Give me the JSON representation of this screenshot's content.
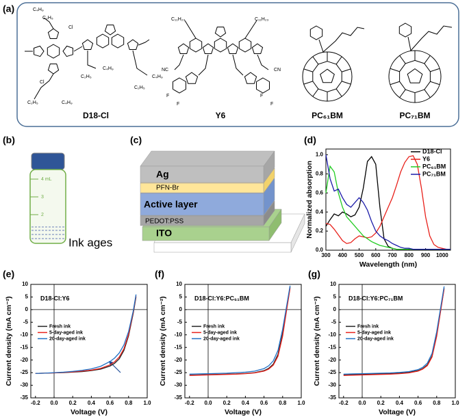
{
  "panel_labels": [
    "(a)",
    "(b)",
    "(c)",
    "(d)",
    "(e)",
    "(f)",
    "(g)"
  ],
  "molecules": {
    "names": [
      "D18-Cl",
      "Y6",
      "PC₆₁BM",
      "PC₇₁BM"
    ],
    "d18_atoms": [
      "C₄H₉",
      "C₂H₅",
      "Cl",
      "Cl",
      "C₂H₅",
      "C₄H₉",
      "C₄H₉",
      "C₂H₅",
      "C₄H₉",
      "C₂H₅"
    ],
    "y6_atoms": [
      "C₁₁H₂₃",
      "C₁₁H₂₃",
      "NC",
      "CN",
      "F",
      "F",
      "F",
      "F"
    ]
  },
  "vial": {
    "marks": [
      "4 mL",
      "3",
      "2"
    ],
    "caption": "Ink ages"
  },
  "device": {
    "layers": [
      "Ag",
      "PFN-Br",
      "Active layer",
      "PEDOT:PSS",
      "ITO"
    ]
  },
  "chart_data": [
    {
      "type": "line",
      "xlabel": "Wavelength (nm)",
      "ylabel": "Normalized absorption",
      "legend": "upper right",
      "x": [
        300,
        325,
        350,
        375,
        400,
        425,
        450,
        475,
        500,
        525,
        550,
        575,
        600,
        625,
        650,
        675,
        700,
        725,
        750,
        775,
        800,
        825,
        850,
        875,
        900,
        925,
        950,
        975,
        1000,
        1025,
        1050
      ],
      "xlim": [
        300,
        1050
      ],
      "xticks": [
        300,
        400,
        500,
        600,
        700,
        800,
        900,
        1000
      ],
      "ylim": [
        0,
        1.06
      ],
      "yticks": [
        {
          "value": 0,
          "label": "0.0"
        },
        0.2,
        0.4,
        0.6,
        0.8,
        {
          "value": 1,
          "label": "1.0"
        }
      ],
      "series": [
        {
          "name": "D18-Cl",
          "color": "#000000",
          "values": [
            0.25,
            0.32,
            0.38,
            0.36,
            0.4,
            0.38,
            0.35,
            0.37,
            0.45,
            0.65,
            0.93,
            0.98,
            0.9,
            0.45,
            0.12,
            0.04,
            0.02,
            0.01,
            0.01,
            0.01,
            0.01,
            0.01,
            0.01,
            0.01,
            0.01,
            0.01,
            0.01,
            0.01,
            0.01,
            0.01,
            0.01
          ]
        },
        {
          "name": "Y6",
          "color": "#e8201a",
          "values": [
            0.28,
            0.27,
            0.22,
            0.16,
            0.1,
            0.07,
            0.08,
            0.12,
            0.15,
            0.14,
            0.13,
            0.14,
            0.18,
            0.25,
            0.35,
            0.45,
            0.55,
            0.68,
            0.82,
            0.92,
            0.98,
            0.99,
            0.9,
            0.65,
            0.35,
            0.15,
            0.06,
            0.03,
            0.02,
            0.01,
            0.01
          ]
        },
        {
          "name": "PC₆₁BM",
          "color": "#22cc22",
          "values": [
            0.6,
            0.88,
            0.82,
            0.6,
            0.45,
            0.35,
            0.3,
            0.25,
            0.2,
            0.15,
            0.12,
            0.09,
            0.07,
            0.05,
            0.04,
            0.03,
            0.02,
            0.01,
            0.01,
            0.01,
            0.01,
            0.01,
            0.01,
            0.01,
            0.01,
            0.01,
            0.01,
            0.01,
            0.01,
            0.01,
            0.01
          ]
        },
        {
          "name": "PC₇₁BM",
          "color": "#1a1aa8",
          "values": [
            1.0,
            0.75,
            0.62,
            0.64,
            0.55,
            0.48,
            0.45,
            0.5,
            0.55,
            0.5,
            0.42,
            0.3,
            0.2,
            0.15,
            0.12,
            0.1,
            0.07,
            0.05,
            0.03,
            0.02,
            0.02,
            0.01,
            0.01,
            0.01,
            0.01,
            0.01,
            0.01,
            0.01,
            0.01,
            0.01,
            0.01
          ]
        }
      ]
    },
    {
      "type": "line",
      "label": "D18-Cl:Y6",
      "xlabel": "Voltage (V)",
      "ylabel": "Current density (mA cm⁻²)",
      "legend": "center left",
      "x": [
        -0.2,
        -0.1,
        0,
        0.1,
        0.2,
        0.3,
        0.4,
        0.5,
        0.6,
        0.65,
        0.7,
        0.75,
        0.8,
        0.85,
        0.88
      ],
      "xlim": [
        -0.25,
        1.0
      ],
      "xticks": [
        -0.2,
        {
          "value": 0,
          "label": "0.0"
        },
        0.2,
        0.4,
        0.6,
        0.8,
        {
          "value": 1,
          "label": "1.0"
        }
      ],
      "ylim": [
        -35,
        10
      ],
      "yticks": [
        -35,
        -30,
        -25,
        -20,
        -15,
        -10,
        -5,
        0,
        5,
        10
      ],
      "series": [
        {
          "name": "Fresh ink",
          "color": "#222222",
          "values": [
            -25.3,
            -25.2,
            -25.1,
            -25.0,
            -24.8,
            -24.6,
            -24.2,
            -23.6,
            -22.4,
            -21.3,
            -19.5,
            -16.2,
            -10.4,
            -1.5,
            5.0
          ]
        },
        {
          "name": "5-day-aged ink",
          "color": "#e8201a",
          "values": [
            -25.3,
            -25.2,
            -25.1,
            -24.9,
            -24.7,
            -24.4,
            -24.0,
            -23.3,
            -21.9,
            -20.7,
            -18.8,
            -15.5,
            -9.8,
            -1.0,
            5.5
          ]
        },
        {
          "name": "20-day-aged ink",
          "color": "#1f6fc4",
          "values": [
            -25.3,
            -25.2,
            -25.0,
            -24.8,
            -24.5,
            -24.1,
            -23.5,
            -22.5,
            -20.6,
            -19.2,
            -17.2,
            -14.0,
            -8.7,
            -0.5,
            6.0
          ]
        }
      ]
    },
    {
      "type": "line",
      "label": "D18-Cl:Y6:PC₆₁BM",
      "xlabel": "Voltage (V)",
      "ylabel": "Current density (mA cm⁻²)",
      "legend": "center left",
      "x": [
        -0.2,
        -0.1,
        0,
        0.1,
        0.2,
        0.3,
        0.4,
        0.5,
        0.6,
        0.65,
        0.7,
        0.75,
        0.8,
        0.85,
        0.88
      ],
      "xlim": [
        -0.25,
        1.0
      ],
      "xticks": [
        -0.2,
        {
          "value": 0,
          "label": "0.0"
        },
        0.2,
        0.4,
        0.6,
        0.8,
        {
          "value": 1,
          "label": "1.0"
        }
      ],
      "ylim": [
        -35,
        10
      ],
      "yticks": [
        -35,
        -30,
        -25,
        -20,
        -15,
        -10,
        -5,
        0,
        5,
        10
      ],
      "series": [
        {
          "name": "Fresh ink",
          "color": "#222222",
          "values": [
            -26.0,
            -25.9,
            -25.8,
            -25.7,
            -25.6,
            -25.5,
            -25.3,
            -25.0,
            -24.2,
            -23.3,
            -21.6,
            -17.8,
            -9.5,
            2.0,
            9.0
          ]
        },
        {
          "name": "5-day-aged ink",
          "color": "#e8201a",
          "values": [
            -26.1,
            -26.0,
            -25.9,
            -25.8,
            -25.7,
            -25.6,
            -25.4,
            -25.1,
            -24.4,
            -23.6,
            -22.0,
            -18.5,
            -10.5,
            1.5,
            8.5
          ]
        },
        {
          "name": "20-day-aged ink",
          "color": "#1f6fc4",
          "values": [
            -25.6,
            -25.5,
            -25.4,
            -25.3,
            -25.2,
            -25.0,
            -24.8,
            -24.4,
            -23.4,
            -22.3,
            -20.3,
            -16.2,
            -7.8,
            3.0,
            9.5
          ]
        }
      ]
    },
    {
      "type": "line",
      "label": "D18-Cl:Y6:PC₇₁BM",
      "xlabel": "Voltage (V)",
      "ylabel": "Current density (mA cm⁻²)",
      "legend": "center left",
      "x": [
        -0.2,
        -0.1,
        0,
        0.1,
        0.2,
        0.3,
        0.4,
        0.5,
        0.6,
        0.65,
        0.7,
        0.75,
        0.8,
        0.85,
        0.88
      ],
      "xlim": [
        -0.25,
        1.0
      ],
      "xticks": [
        -0.2,
        {
          "value": 0,
          "label": "0.0"
        },
        0.2,
        0.4,
        0.6,
        0.8,
        {
          "value": 1,
          "label": "1.0"
        }
      ],
      "ylim": [
        -35,
        10
      ],
      "yticks": [
        -35,
        -30,
        -25,
        -20,
        -15,
        -10,
        -5,
        0,
        5,
        10
      ],
      "series": [
        {
          "name": "Fresh ink",
          "color": "#222222",
          "values": [
            -25.9,
            -25.8,
            -25.7,
            -25.6,
            -25.5,
            -25.4,
            -25.2,
            -24.9,
            -24.2,
            -23.4,
            -21.9,
            -18.4,
            -10.0,
            1.5,
            8.5
          ]
        },
        {
          "name": "5-day-aged ink",
          "color": "#e8201a",
          "values": [
            -26.1,
            -26.0,
            -25.9,
            -25.8,
            -25.7,
            -25.6,
            -25.4,
            -25.1,
            -24.4,
            -23.6,
            -22.2,
            -18.8,
            -10.6,
            1.2,
            8.2
          ]
        },
        {
          "name": "20-day-aged ink",
          "color": "#1f6fc4",
          "values": [
            -25.6,
            -25.5,
            -25.4,
            -25.3,
            -25.2,
            -25.1,
            -24.9,
            -24.6,
            -23.8,
            -22.9,
            -21.2,
            -17.4,
            -8.8,
            2.5,
            9.2
          ]
        }
      ]
    }
  ]
}
